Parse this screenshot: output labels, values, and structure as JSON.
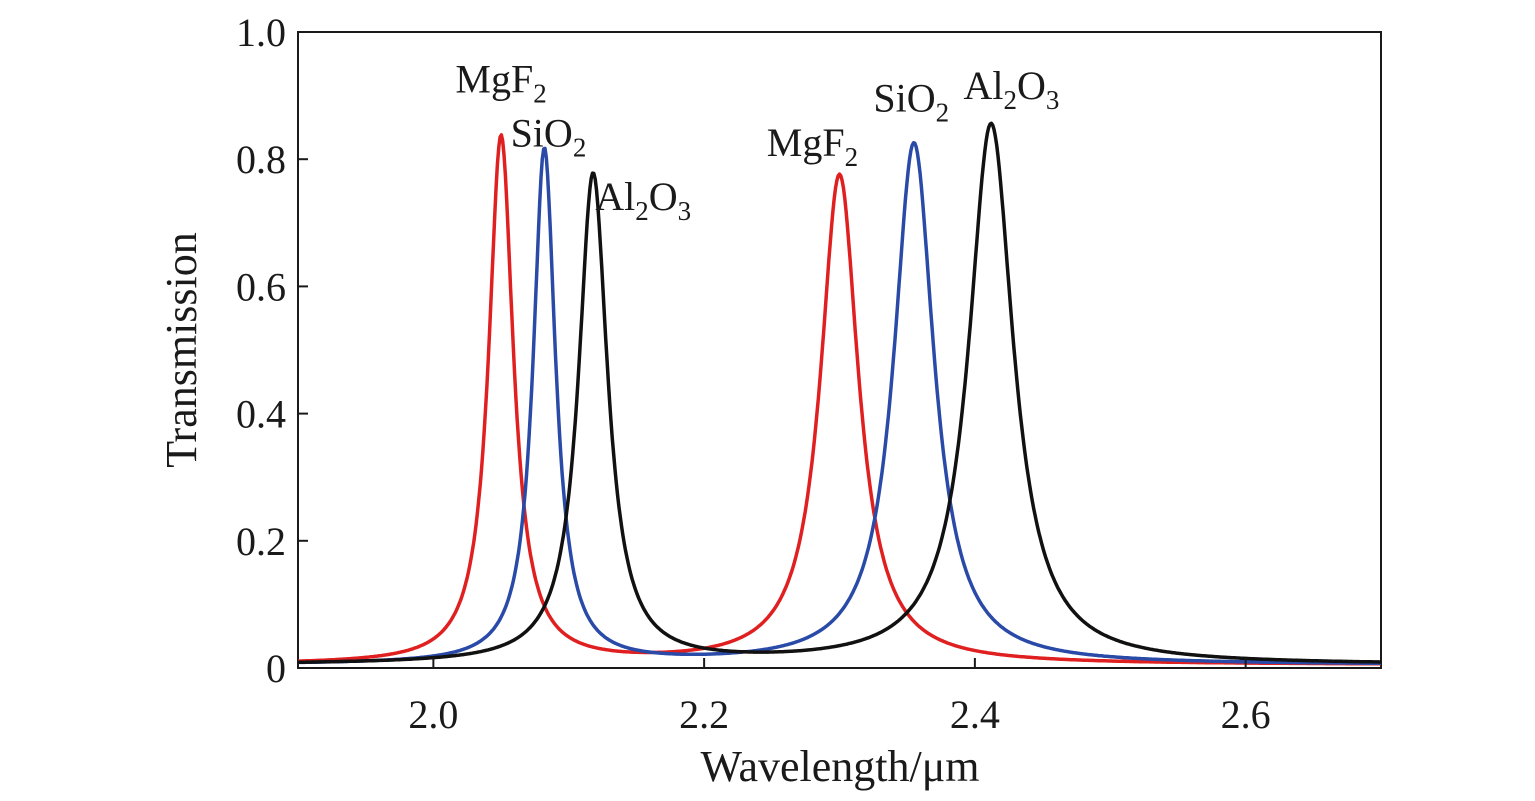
{
  "chart_data": {
    "type": "line",
    "title": "",
    "xlabel": "Wavelength/μm",
    "ylabel": "Transmission",
    "xlim": [
      1.9,
      2.7
    ],
    "ylim": [
      0,
      1.0
    ],
    "xticks": [
      2.0,
      2.2,
      2.4,
      2.6
    ],
    "xtick_labels": [
      "2.0",
      "2.2",
      "2.4",
      "2.6"
    ],
    "yticks": [
      0,
      0.2,
      0.4,
      0.6,
      0.8,
      1.0
    ],
    "ytick_labels": [
      "0",
      "0.2",
      "0.4",
      "0.6",
      "0.8",
      "1.0"
    ],
    "grid": false,
    "legend": "none",
    "series": [
      {
        "color": "#e02020",
        "peaks": [
          {
            "center": 2.05,
            "height": 0.83,
            "fwhm": 0.022
          },
          {
            "center": 2.3,
            "height": 0.77,
            "fwhm": 0.034
          }
        ],
        "baseline": 0.005
      },
      {
        "color": "#2a4aa8",
        "peaks": [
          {
            "center": 2.082,
            "height": 0.81,
            "fwhm": 0.02
          },
          {
            "center": 2.355,
            "height": 0.82,
            "fwhm": 0.036
          }
        ],
        "baseline": 0.005
      },
      {
        "color": "#111111",
        "peaks": [
          {
            "center": 2.118,
            "height": 0.77,
            "fwhm": 0.026
          },
          {
            "center": 2.412,
            "height": 0.85,
            "fwhm": 0.04
          }
        ],
        "baseline": 0.005
      }
    ],
    "annotations": [
      {
        "base": "MgF",
        "sub": "2",
        "tail": "",
        "x": 2.05,
        "y": 0.905
      },
      {
        "base": "SiO",
        "sub": "2",
        "tail": "",
        "x": 2.085,
        "y": 0.82
      },
      {
        "base": "Al",
        "sub": "2",
        "tail": "O",
        "sub2": "3",
        "x": 2.155,
        "y": 0.72
      },
      {
        "base": "MgF",
        "sub": "2",
        "tail": "",
        "x": 2.28,
        "y": 0.805
      },
      {
        "base": "SiO",
        "sub": "2",
        "tail": "",
        "x": 2.353,
        "y": 0.875
      },
      {
        "base": "Al",
        "sub": "2",
        "tail": "O",
        "sub2": "3",
        "x": 2.427,
        "y": 0.895
      }
    ]
  }
}
